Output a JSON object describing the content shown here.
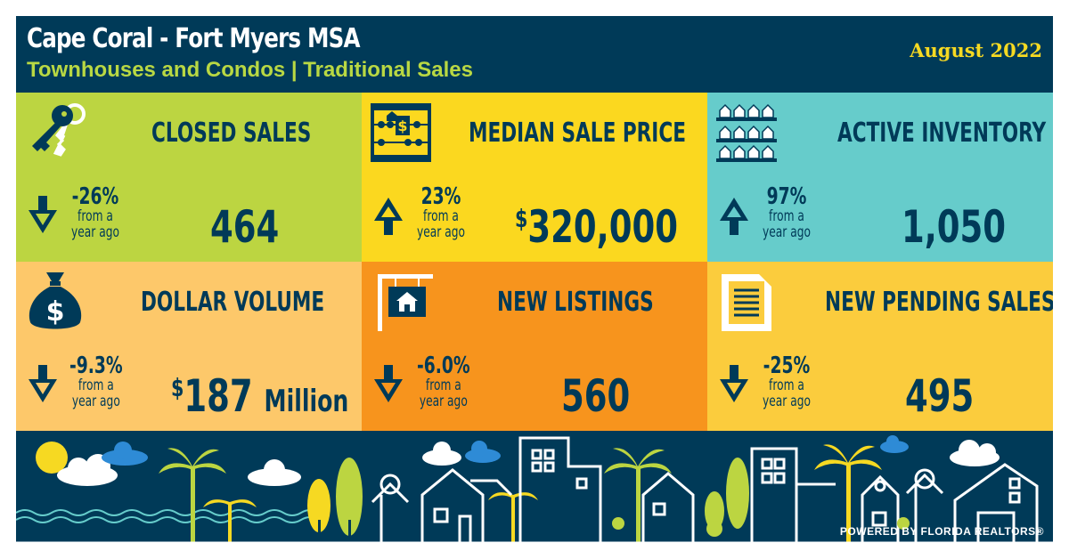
{
  "header": {
    "title": "Cape Coral - Fort Myers MSA",
    "subtitle": "Townhouses and Condos | Traditional Sales",
    "date": "August 2022"
  },
  "tiles": [
    {
      "label": "CLOSED SALES",
      "change": "-26%",
      "change_sub1": "from a",
      "change_sub2": "year ago",
      "direction": "down",
      "value": "464",
      "icon": "keys-icon"
    },
    {
      "label": "MEDIAN SALE PRICE",
      "change": "23%",
      "change_sub1": "from a",
      "change_sub2": "year ago",
      "direction": "up",
      "value_prefix": "$",
      "value": "320,000",
      "icon": "abacus-icon"
    },
    {
      "label": "ACTIVE INVENTORY",
      "change": "97%",
      "change_sub1": "from a",
      "change_sub2": "year ago",
      "direction": "up",
      "value": "1,050",
      "icon": "houses-rows-icon"
    },
    {
      "label": "DOLLAR VOLUME",
      "change": "-9.3%",
      "change_sub1": "from a",
      "change_sub2": "year ago",
      "direction": "down",
      "value_prefix": "$",
      "value": "187",
      "value_unit": "Million",
      "icon": "money-bag-icon"
    },
    {
      "label": "NEW LISTINGS",
      "change": "-6.0%",
      "change_sub1": "from a",
      "change_sub2": "year ago",
      "direction": "down",
      "value": "560",
      "icon": "for-sale-sign-icon"
    },
    {
      "label": "NEW PENDING SALES",
      "change": "-25%",
      "change_sub1": "from a",
      "change_sub2": "year ago",
      "direction": "down",
      "value": "495",
      "icon": "document-icon"
    }
  ],
  "footer": {
    "powered_by": "POWERED BY FLORIDA REALTORS®"
  },
  "colors": {
    "navy": "#003a58",
    "lime": "#bcd541",
    "yellow": "#fbd81f",
    "teal": "#66cccb",
    "peach": "#fdc86a",
    "orange": "#f7941d",
    "gold": "#fbcc3d",
    "date_yellow": "#f6d922",
    "subtitle_green": "#b9d843"
  }
}
